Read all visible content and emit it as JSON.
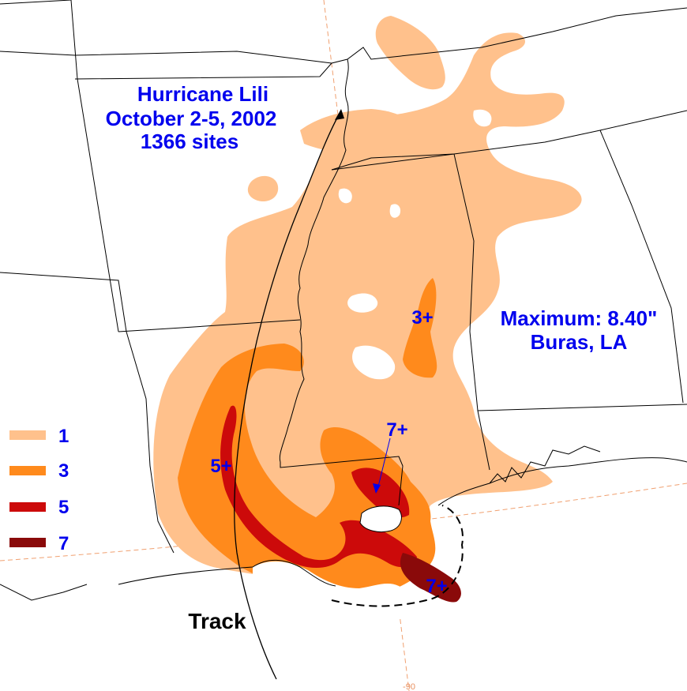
{
  "title": {
    "line1": "Hurricane Lili",
    "line2": "October 2-5, 2002",
    "line3": "1366 sites"
  },
  "maximum": {
    "line1": "Maximum: 8.40\"",
    "line2": "Buras, LA"
  },
  "track_label": "Track",
  "contour_labels": {
    "three_plus": "3+",
    "five_plus": "5+",
    "seven_plus_north": "7+",
    "seven_plus_south": "7+"
  },
  "longitude_tick": "-90",
  "legend": [
    {
      "value": "1",
      "color": "#ffc18c"
    },
    {
      "value": "3",
      "color": "#ff8a1c"
    },
    {
      "value": "5",
      "color": "#cc0a0a"
    },
    {
      "value": "7",
      "color": "#8a0a0a"
    }
  ],
  "colors": {
    "band_1": "#ffc18c",
    "band_3": "#ff8a1c",
    "band_5": "#cc0a0a",
    "band_7": "#8a0a0a",
    "label_blue": "#0000ee",
    "grid": "#f0a070"
  }
}
